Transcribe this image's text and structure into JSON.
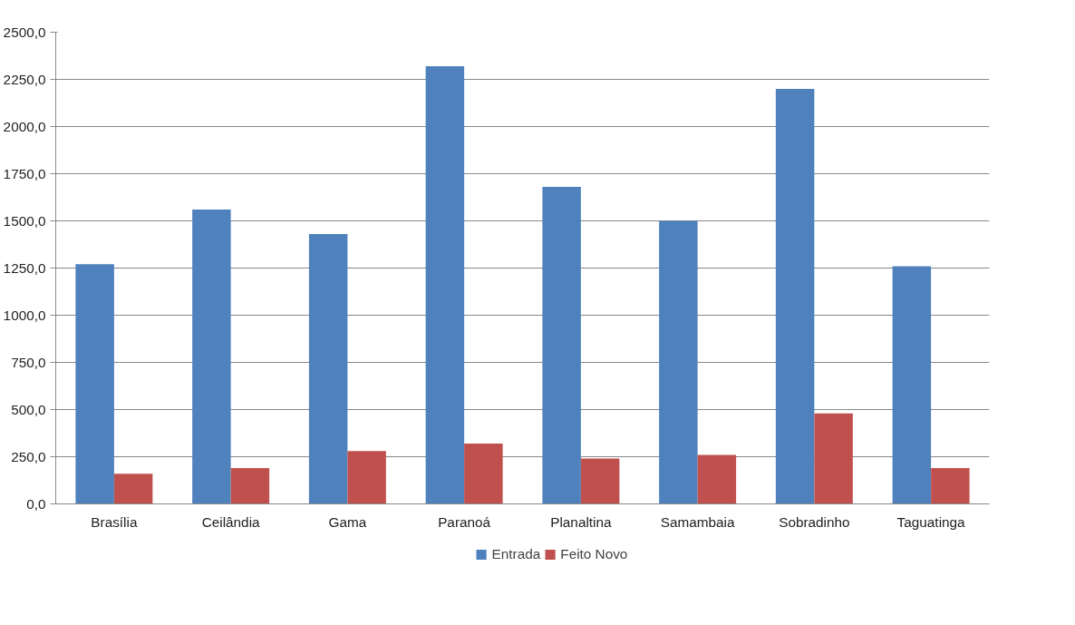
{
  "chart_data": {
    "type": "bar",
    "categories": [
      "Brasília",
      "Ceilândia",
      "Gama",
      "Paranoá",
      "Planaltina",
      "Samambaia",
      "Sobradinho",
      "Taguatinga"
    ],
    "series": [
      {
        "name": "Entrada",
        "color": "#4f81bd",
        "values": [
          1270,
          1560,
          1430,
          2320,
          1680,
          1500,
          2200,
          1260
        ]
      },
      {
        "name": "Feito Novo",
        "color": "#c0504d",
        "values": [
          160,
          190,
          280,
          320,
          240,
          260,
          480,
          190
        ]
      }
    ],
    "ylim": [
      0,
      2500
    ],
    "yticks": [
      {
        "value": 0,
        "label": "0,0"
      },
      {
        "value": 250,
        "label": "250,0"
      },
      {
        "value": 500,
        "label": "500,0"
      },
      {
        "value": 750,
        "label": "750,0"
      },
      {
        "value": 1000,
        "label": "1000,0"
      },
      {
        "value": 1250,
        "label": "1250,0"
      },
      {
        "value": 1500,
        "label": "1500,0"
      },
      {
        "value": 1750,
        "label": "1750,0"
      },
      {
        "value": 2000,
        "label": "2000,0"
      },
      {
        "value": 2250,
        "label": "2250,0"
      },
      {
        "value": 2500,
        "label": "2500,0"
      }
    ],
    "grid": "y",
    "legend": "bottom"
  }
}
